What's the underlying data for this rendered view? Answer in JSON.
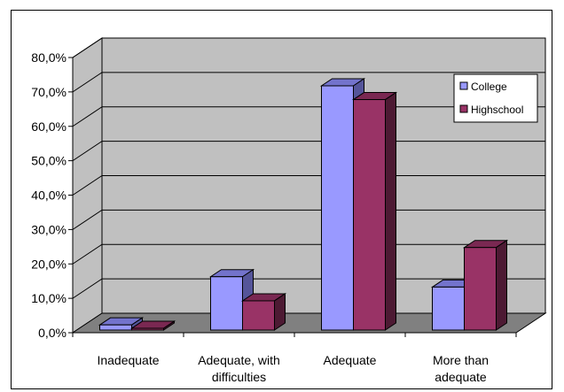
{
  "chart_data": {
    "type": "bar",
    "categories": [
      [
        "Inadequate"
      ],
      [
        "Adequate, with",
        "difficulties"
      ],
      [
        "Adequate"
      ],
      [
        "More than",
        "adequate"
      ]
    ],
    "series": [
      {
        "name": "College",
        "values": [
          1.5,
          15.5,
          71.0,
          12.5
        ],
        "color": "#9999ff",
        "top": "#7373cc",
        "side": "#55559a"
      },
      {
        "name": "Highschool",
        "values": [
          0.5,
          8.5,
          67.0,
          24.0
        ],
        "color": "#993366",
        "top": "#7a2852",
        "side": "#4d1a33"
      }
    ],
    "ylim": [
      0,
      80
    ],
    "yticks": [
      "0,0%",
      "10,0%",
      "20,0%",
      "30,0%",
      "40,0%",
      "50,0%",
      "60,0%",
      "70,0%",
      "80,0%"
    ],
    "grid": true,
    "legend": "top-right",
    "wall_color": "#c0c0c0",
    "floor_color": "#808080"
  }
}
